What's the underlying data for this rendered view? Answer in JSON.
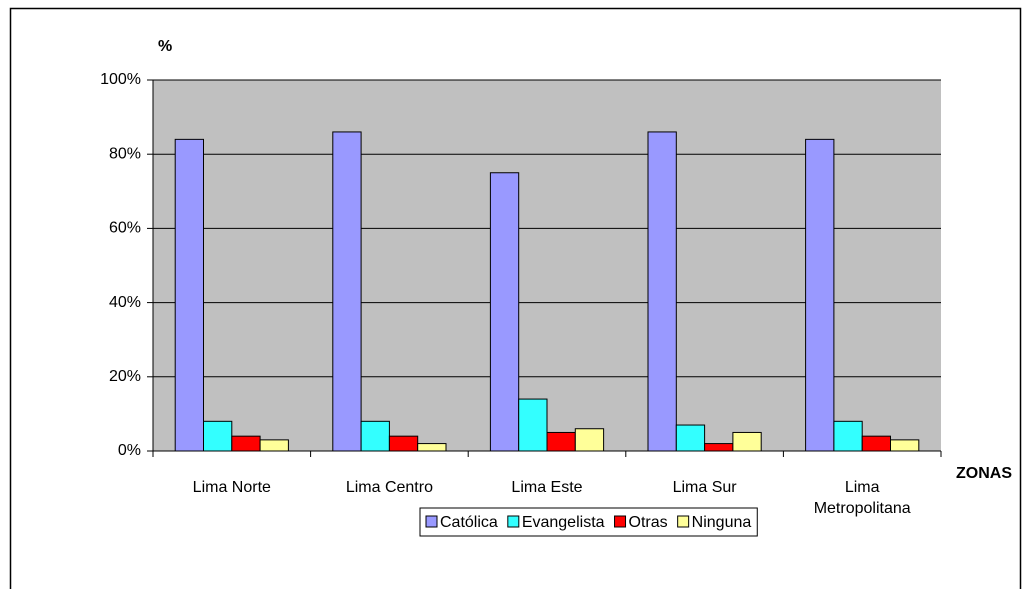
{
  "chart_data": {
    "type": "bar",
    "y_axis_label": "%",
    "x_axis_label": "ZONAS",
    "categories": [
      "Lima Norte",
      "Lima Centro",
      "Lima Este",
      "Lima Sur",
      "Lima Metropolitana"
    ],
    "series": [
      {
        "name": "Católica",
        "color": "#9999ff",
        "values": [
          84,
          86,
          75,
          86,
          84
        ]
      },
      {
        "name": "Evangelista",
        "color": "#33ffff",
        "values": [
          8,
          8,
          14,
          7,
          8
        ]
      },
      {
        "name": "Otras",
        "color": "#ff0000",
        "values": [
          4,
          4,
          5,
          2,
          4
        ]
      },
      {
        "name": "Ninguna",
        "color": "#ffff99",
        "values": [
          3,
          2,
          6,
          5,
          3
        ]
      }
    ],
    "ylim": [
      0,
      100
    ],
    "yticks": [
      {
        "value": 0,
        "label": "0%"
      },
      {
        "value": 20,
        "label": "20%"
      },
      {
        "value": 40,
        "label": "40%"
      },
      {
        "value": 60,
        "label": "60%"
      },
      {
        "value": 80,
        "label": "80%"
      },
      {
        "value": 100,
        "label": "100%"
      }
    ],
    "grid": true,
    "legend": "bottom"
  }
}
